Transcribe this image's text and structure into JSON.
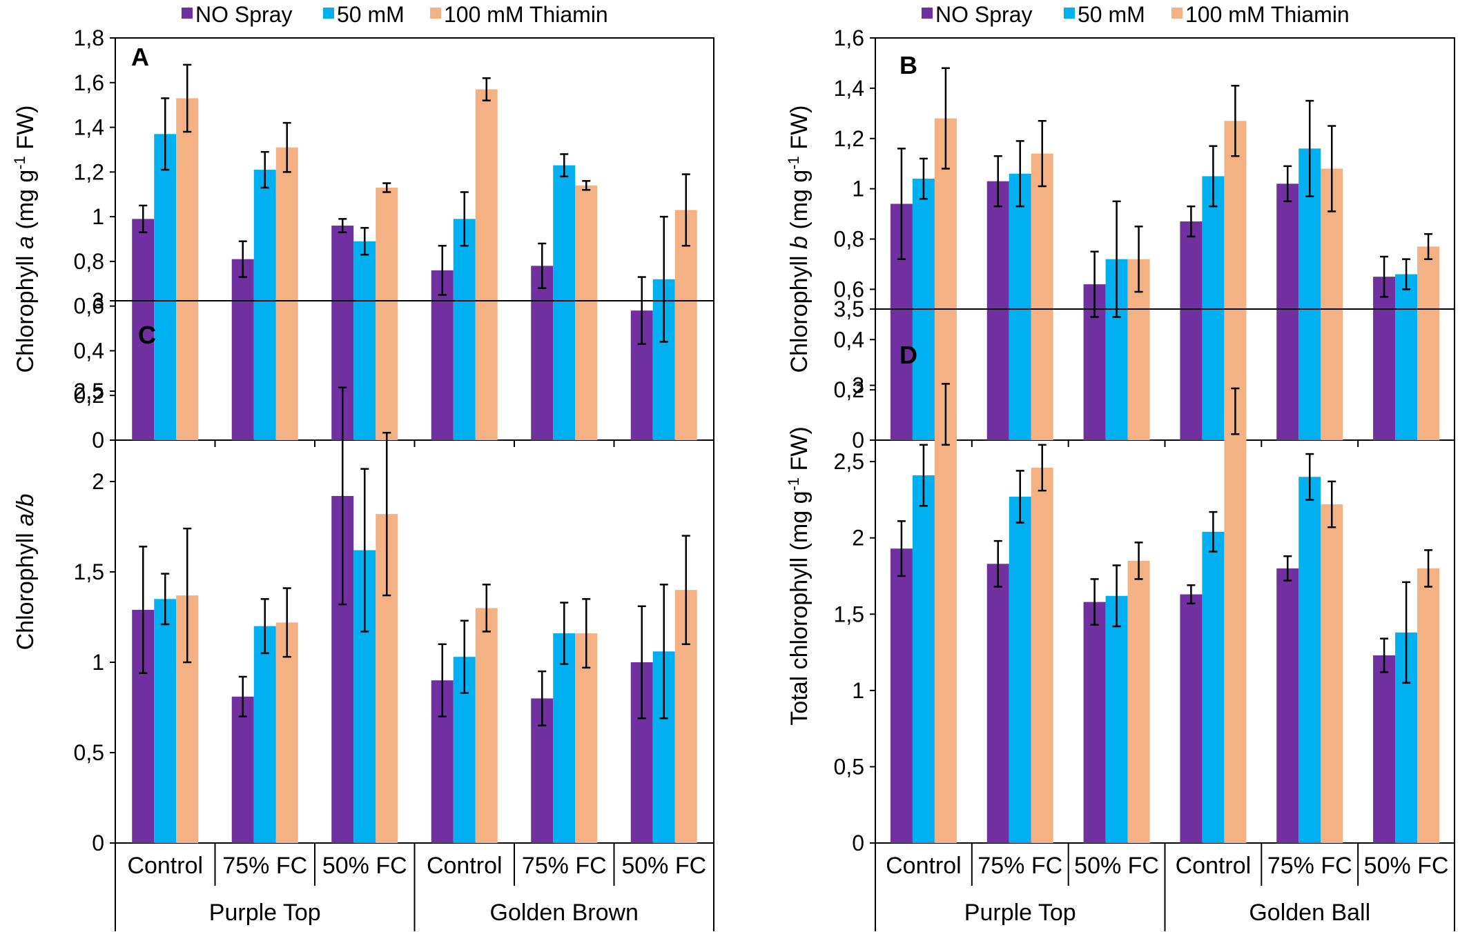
{
  "legend": {
    "items": [
      {
        "label": "NO Spray",
        "color": "#7030a0"
      },
      {
        "label": "50 mM",
        "color": "#00b0f0"
      },
      {
        "label": "100 mM Thiamin",
        "color": "#f4b183"
      }
    ]
  },
  "chart_data": [
    {
      "type": "bar",
      "panel_letter": "A",
      "ylabel_parts": [
        "Chlorophyll ",
        "a",
        " (mg g",
        "-1",
        " FW)"
      ],
      "ylim": [
        0,
        1.8
      ],
      "yticks": [
        "0",
        "0,2",
        "0,4",
        "0,6",
        "0,8",
        "1",
        "1,2",
        "1,4",
        "1,6",
        "1,8"
      ],
      "categories": [
        "Control",
        "75% FC",
        "50% FC",
        "Control",
        "75% FC",
        "50% FC"
      ],
      "groups": [
        "Purple Top",
        "Golden Brown"
      ],
      "series": [
        {
          "name": "NO Spray",
          "values": [
            0.99,
            0.81,
            0.96,
            0.76,
            0.78,
            0.58
          ],
          "errors": [
            0.06,
            0.08,
            0.03,
            0.11,
            0.1,
            0.15
          ]
        },
        {
          "name": "50 mM",
          "values": [
            1.37,
            1.21,
            0.89,
            0.99,
            1.23,
            0.72
          ],
          "errors": [
            0.16,
            0.08,
            0.06,
            0.12,
            0.05,
            0.28
          ]
        },
        {
          "name": "100 mM Thiamin",
          "values": [
            1.53,
            1.31,
            1.13,
            1.57,
            1.14,
            1.03
          ],
          "errors": [
            0.15,
            0.11,
            0.02,
            0.05,
            0.02,
            0.16
          ]
        }
      ]
    },
    {
      "type": "bar",
      "panel_letter": "B",
      "ylabel_parts": [
        "Chlorophyll ",
        "b",
        " (mg g",
        "-1",
        " FW)"
      ],
      "ylim": [
        0,
        1.6
      ],
      "yticks": [
        "0",
        "0,2",
        "0,4",
        "0,6",
        "0,8",
        "1",
        "1,2",
        "1,4",
        "1,6"
      ],
      "categories": [
        "Control",
        "75% FC",
        "50% FC",
        "Control",
        "75% FC",
        "50% FC"
      ],
      "groups": [
        "Purple Top",
        "Golden Ball"
      ],
      "series": [
        {
          "name": "NO Spray",
          "values": [
            0.94,
            1.03,
            0.62,
            0.87,
            1.02,
            0.65
          ],
          "errors": [
            0.22,
            0.1,
            0.13,
            0.06,
            0.07,
            0.08
          ]
        },
        {
          "name": "50 mM",
          "values": [
            1.04,
            1.06,
            0.72,
            1.05,
            1.16,
            0.66
          ],
          "errors": [
            0.08,
            0.13,
            0.23,
            0.12,
            0.19,
            0.06
          ]
        },
        {
          "name": "100 mM Thiamin",
          "values": [
            1.28,
            1.14,
            0.72,
            1.27,
            1.08,
            0.77
          ],
          "errors": [
            0.2,
            0.13,
            0.13,
            0.14,
            0.17,
            0.05
          ]
        }
      ]
    },
    {
      "type": "bar",
      "panel_letter": "C",
      "ylabel_parts": [
        "Chlorophyll ",
        "a/b"
      ],
      "ylim": [
        0,
        3
      ],
      "yticks": [
        "0",
        "0,5",
        "1",
        "1,5",
        "2",
        "2,5",
        "3"
      ],
      "categories": [
        "Control",
        "75% FC",
        "50% FC",
        "Control",
        "75% FC",
        "50% FC"
      ],
      "groups": [
        "Purple Top",
        "Golden Brown"
      ],
      "series": [
        {
          "name": "NO Spray",
          "values": [
            1.29,
            0.81,
            1.92,
            0.9,
            0.8,
            1.0
          ],
          "errors": [
            0.35,
            0.11,
            0.6,
            0.2,
            0.15,
            0.31
          ]
        },
        {
          "name": "50 mM",
          "values": [
            1.35,
            1.2,
            1.62,
            1.03,
            1.16,
            1.06
          ],
          "errors": [
            0.14,
            0.15,
            0.45,
            0.2,
            0.17,
            0.37
          ]
        },
        {
          "name": "100 mM Thiamin",
          "values": [
            1.37,
            1.22,
            1.82,
            1.3,
            1.16,
            1.4
          ],
          "errors": [
            0.37,
            0.19,
            0.45,
            0.13,
            0.19,
            0.3
          ]
        }
      ]
    },
    {
      "type": "bar",
      "panel_letter": "D",
      "ylabel_parts": [
        "Total chlorophyll (mg g",
        "-1",
        " FW)"
      ],
      "ylim": [
        0,
        3.5
      ],
      "yticks": [
        "0",
        "0,5",
        "1",
        "1,5",
        "2",
        "2,5",
        "3",
        "3,5"
      ],
      "categories": [
        "Control",
        "75% FC",
        "50% FC",
        "Control",
        "75% FC",
        "50% FC"
      ],
      "groups": [
        "Purple Top",
        "Golden Ball"
      ],
      "series": [
        {
          "name": "NO Spray",
          "values": [
            1.93,
            1.83,
            1.58,
            1.63,
            1.8,
            1.23
          ],
          "errors": [
            0.18,
            0.15,
            0.15,
            0.06,
            0.08,
            0.11
          ]
        },
        {
          "name": "50 mM",
          "values": [
            2.41,
            2.27,
            1.62,
            2.04,
            2.4,
            1.38
          ],
          "errors": [
            0.2,
            0.17,
            0.2,
            0.13,
            0.15,
            0.33
          ]
        },
        {
          "name": "100 mM Thiamin",
          "values": [
            2.81,
            2.46,
            1.85,
            2.83,
            2.22,
            1.8
          ],
          "errors": [
            0.2,
            0.15,
            0.12,
            0.15,
            0.15,
            0.12
          ]
        }
      ]
    }
  ]
}
